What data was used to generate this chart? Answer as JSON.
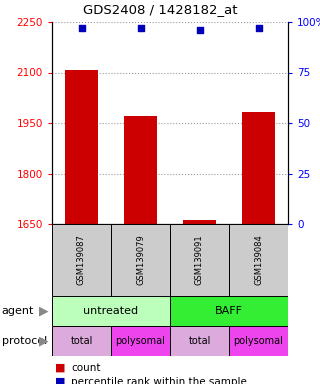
{
  "title": "GDS2408 / 1428182_at",
  "samples": [
    "GSM139087",
    "GSM139079",
    "GSM139091",
    "GSM139084"
  ],
  "bar_values": [
    2108,
    1970,
    1662,
    1982
  ],
  "percentile_values": [
    97,
    97,
    96,
    97
  ],
  "ylim_left": [
    1650,
    2250
  ],
  "ylim_right": [
    0,
    100
  ],
  "yticks_left": [
    1650,
    1800,
    1950,
    2100,
    2250
  ],
  "yticks_right": [
    0,
    25,
    50,
    75,
    100
  ],
  "ytick_labels_right": [
    "0",
    "25",
    "50",
    "75",
    "100%"
  ],
  "bar_color": "#cc0000",
  "dot_color": "#0000bb",
  "bar_width": 0.55,
  "agent_colors": [
    "#bbffbb",
    "#33ee33"
  ],
  "protocol_colors_total": "#ddaadd",
  "protocol_colors_poly": "#ee44ee",
  "grid_color": "#999999",
  "background_color": "#ffffff",
  "plot_bg": "#ffffff",
  "sample_box_color": "#cccccc",
  "legend_square_size": 8
}
